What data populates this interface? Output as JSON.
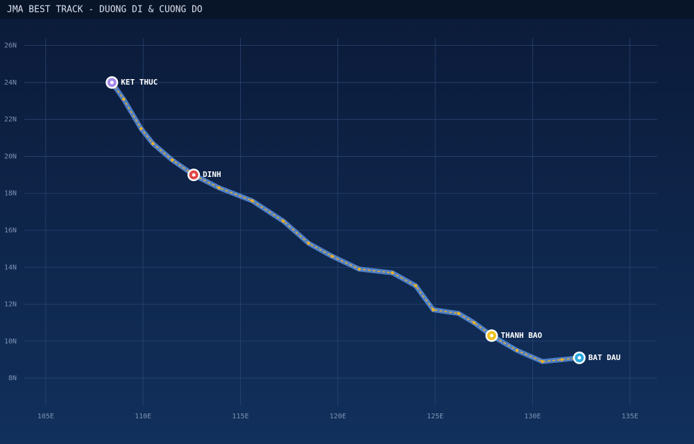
{
  "chart_data": {
    "type": "line",
    "title": "JMA BEST TRACK - DUONG DI & CUONG DO",
    "x": [
      132.4,
      131.5,
      130.5,
      129.2,
      127.9,
      127.0,
      126.2,
      124.9,
      124.0,
      122.8,
      121.1,
      119.7,
      118.5,
      117.2,
      115.6,
      113.9,
      112.6,
      111.5,
      110.5,
      109.9,
      109.0,
      108.4
    ],
    "values": [
      9.1,
      9.0,
      8.9,
      9.5,
      10.3,
      11.0,
      11.5,
      11.7,
      13.0,
      13.7,
      13.9,
      14.6,
      15.3,
      16.5,
      17.6,
      18.3,
      19.0,
      19.8,
      20.7,
      21.5,
      23.1,
      24.0
    ],
    "color": "#f0b020",
    "track_color": "#5a8fdc",
    "xlim": [
      103.9,
      136.4
    ],
    "ylim": [
      6.5,
      26.4
    ],
    "xticks": [
      {
        "value": 105,
        "label": "105E"
      },
      {
        "value": 110,
        "label": "110E"
      },
      {
        "value": 115,
        "label": "115E"
      },
      {
        "value": 120,
        "label": "120E"
      },
      {
        "value": 125,
        "label": "125E"
      },
      {
        "value": 130,
        "label": "130E"
      },
      {
        "value": 135,
        "label": "135E"
      }
    ],
    "yticks": [
      {
        "value": 8,
        "label": "8N"
      },
      {
        "value": 10,
        "label": "10N"
      },
      {
        "value": 12,
        "label": "12N"
      },
      {
        "value": 14,
        "label": "14N"
      },
      {
        "value": 16,
        "label": "16N"
      },
      {
        "value": 18,
        "label": "18N"
      },
      {
        "value": 20,
        "label": "20N"
      },
      {
        "value": 22,
        "label": "22N"
      },
      {
        "value": 24,
        "label": "24N"
      },
      {
        "value": 26,
        "label": "26N"
      }
    ],
    "grid": true,
    "annotations": [
      {
        "label": "BAT DAU",
        "x": 132.4,
        "y": 9.1,
        "color": "#2aa8e0"
      },
      {
        "label": "THANH BAO",
        "x": 127.9,
        "y": 10.3,
        "color": "#f0c020"
      },
      {
        "label": "DINH",
        "x": 112.6,
        "y": 19.0,
        "color": "#e04444"
      },
      {
        "label": "KET THUC",
        "x": 108.4,
        "y": 24.0,
        "color": "#a488e8"
      }
    ]
  }
}
